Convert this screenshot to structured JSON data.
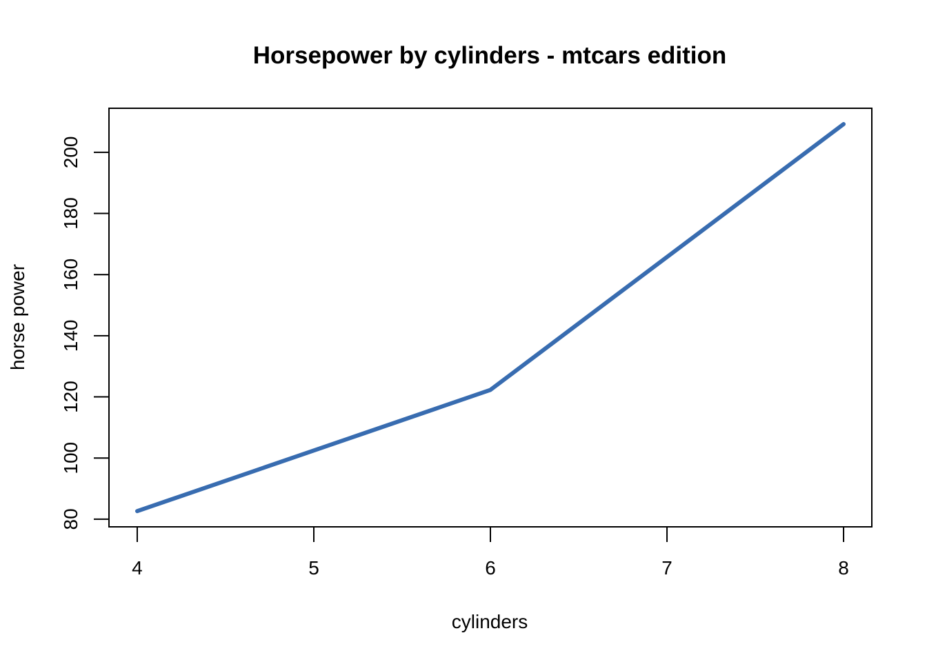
{
  "chart_data": {
    "type": "line",
    "title": "Horsepower by cylinders - mtcars edition",
    "xlabel": "cylinders",
    "ylabel": "horse power",
    "x": [
      4,
      6,
      8
    ],
    "series": [
      {
        "values": [
          82.64,
          122.29,
          209.21
        ],
        "color": "#386CB0"
      }
    ],
    "xlim": [
      3.84,
      8.16
    ],
    "ylim": [
      77.5,
      214.4
    ],
    "xticks": [
      4,
      5,
      6,
      7,
      8
    ],
    "yticks": [
      80,
      100,
      120,
      140,
      160,
      180,
      200
    ],
    "grid": false,
    "legend": "none"
  }
}
